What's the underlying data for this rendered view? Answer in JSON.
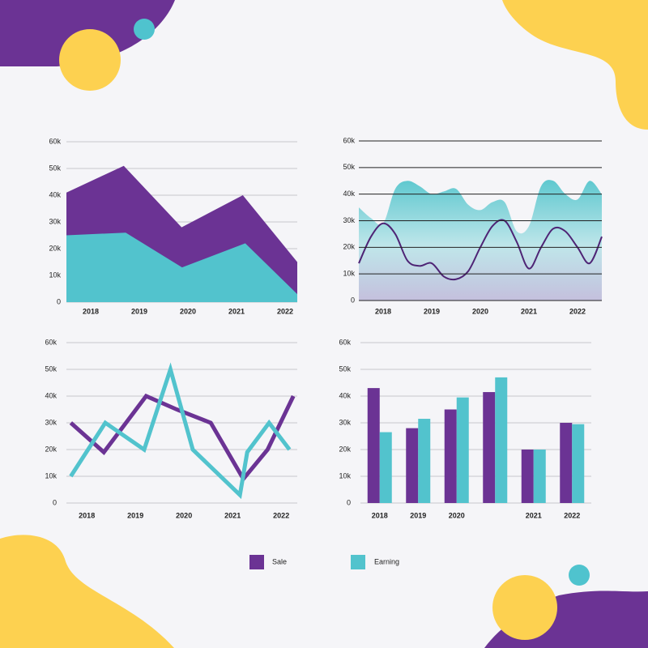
{
  "chart_data": [
    {
      "type": "area",
      "xlim": [
        2017.5,
        2022.25
      ],
      "xticks": [
        2018,
        2019,
        2020,
        2021,
        2022
      ],
      "ylim": [
        0,
        60000
      ],
      "yticks": [
        0,
        {
          "value": 10000,
          "label": "10k"
        },
        {
          "value": 20000,
          "label": "20k"
        },
        {
          "value": 30000,
          "label": "30k"
        },
        {
          "value": 40000,
          "label": "40k"
        },
        {
          "value": 50000,
          "label": "50k"
        },
        {
          "value": 60000,
          "label": "60k"
        }
      ],
      "grid": true,
      "series": [
        {
          "color": "#6b3394",
          "x": [
            2017.5,
            2018.68,
            2019.87,
            2021.13,
            2022.25
          ],
          "values": [
            41000,
            51000,
            28000,
            40000,
            15000
          ]
        },
        {
          "color": "#52c3cd",
          "x": [
            2017.5,
            2018.72,
            2019.88,
            2021.18,
            2022.25
          ],
          "values": [
            25000,
            26000,
            13000,
            22000,
            3000
          ]
        }
      ]
    },
    {
      "type": "area",
      "smooth": true,
      "xlim": [
        2017.5,
        2022.5
      ],
      "xticks": [
        2018,
        2019,
        2020,
        2021,
        2022
      ],
      "ylim": [
        0,
        60000
      ],
      "yticks": [
        0,
        {
          "value": 10000,
          "label": "10k"
        },
        {
          "value": 20000,
          "label": "20k"
        },
        {
          "value": 30000,
          "label": "30k"
        },
        {
          "value": 40000,
          "label": "40k"
        },
        {
          "value": 50000,
          "label": "50k"
        },
        {
          "value": 60000,
          "label": "60k"
        }
      ],
      "grid": true,
      "series": [
        {
          "color": "#5ec8cf",
          "x": [
            2017.5,
            2017.75,
            2018,
            2018.25,
            2018.5,
            2018.75,
            2019,
            2019.25,
            2019.5,
            2019.75,
            2020,
            2020.25,
            2020.5,
            2020.75,
            2021,
            2021.25,
            2021.5,
            2021.75,
            2022,
            2022.25,
            2022.5
          ],
          "values": [
            35000,
            31000,
            29000,
            42000,
            45000,
            43000,
            40000,
            41000,
            42000,
            36000,
            34000,
            37000,
            37000,
            26000,
            28000,
            43000,
            45000,
            40000,
            38000,
            45000,
            40000
          ]
        },
        {
          "type": "line",
          "color": "#4e2475",
          "x": [
            2017.5,
            2017.75,
            2018,
            2018.25,
            2018.5,
            2018.75,
            2019,
            2019.25,
            2019.5,
            2019.75,
            2020,
            2020.25,
            2020.5,
            2020.75,
            2021,
            2021.25,
            2021.5,
            2021.75,
            2022,
            2022.25,
            2022.5
          ],
          "values": [
            14000,
            24000,
            29000,
            25000,
            15000,
            13000,
            14000,
            9000,
            8000,
            11000,
            20000,
            28000,
            30000,
            22000,
            12000,
            20000,
            27000,
            26000,
            20000,
            14000,
            24000
          ]
        }
      ]
    },
    {
      "type": "line",
      "xlim": [
        2017.58,
        2022.33
      ],
      "xticks": [
        2018,
        2019,
        2020,
        2021,
        2022
      ],
      "ylim": [
        0,
        60000
      ],
      "yticks": [
        0,
        {
          "value": 10000,
          "label": "10k"
        },
        {
          "value": 20000,
          "label": "20k"
        },
        {
          "value": 30000,
          "label": "30k"
        },
        {
          "value": 40000,
          "label": "40k"
        },
        {
          "value": 50000,
          "label": "50k"
        },
        {
          "value": 60000,
          "label": "60k"
        }
      ],
      "grid": true,
      "series": [
        {
          "color": "#6b3394",
          "x": [
            2017.67,
            2018.35,
            2019.22,
            2019.85,
            2020.55,
            2021.22,
            2021.72,
            2022.25
          ],
          "values": [
            30000,
            19000,
            40000,
            35000,
            30000,
            9000,
            20000,
            40000
          ]
        },
        {
          "color": "#52c3cd",
          "x": [
            2017.67,
            2018.38,
            2019.18,
            2019.72,
            2020.18,
            2021.15,
            2021.3,
            2021.75,
            2022.17
          ],
          "values": [
            10000,
            30000,
            20000,
            50000,
            20000,
            3000,
            19000,
            30000,
            20000
          ]
        }
      ]
    },
    {
      "type": "bar",
      "categories": [
        "2018",
        "2019",
        "2020",
        null,
        "2021",
        "2022"
      ],
      "ylim": [
        0,
        60000
      ],
      "yticks": [
        0,
        {
          "value": 10000,
          "label": "10k"
        },
        {
          "value": 20000,
          "label": "20k"
        },
        {
          "value": 30000,
          "label": "30k"
        },
        {
          "value": 40000,
          "label": "40k"
        },
        {
          "value": 50000,
          "label": "50k"
        },
        {
          "value": 60000,
          "label": "60k"
        }
      ],
      "grid": true,
      "series": [
        {
          "name": "Sale",
          "color": "#6b3394",
          "values": [
            43000,
            28000,
            35000,
            41500,
            20000,
            30000
          ]
        },
        {
          "name": "Earning",
          "color": "#52c3cd",
          "values": [
            26500,
            31500,
            39500,
            47000,
            20000,
            29500
          ]
        }
      ]
    }
  ]
}
